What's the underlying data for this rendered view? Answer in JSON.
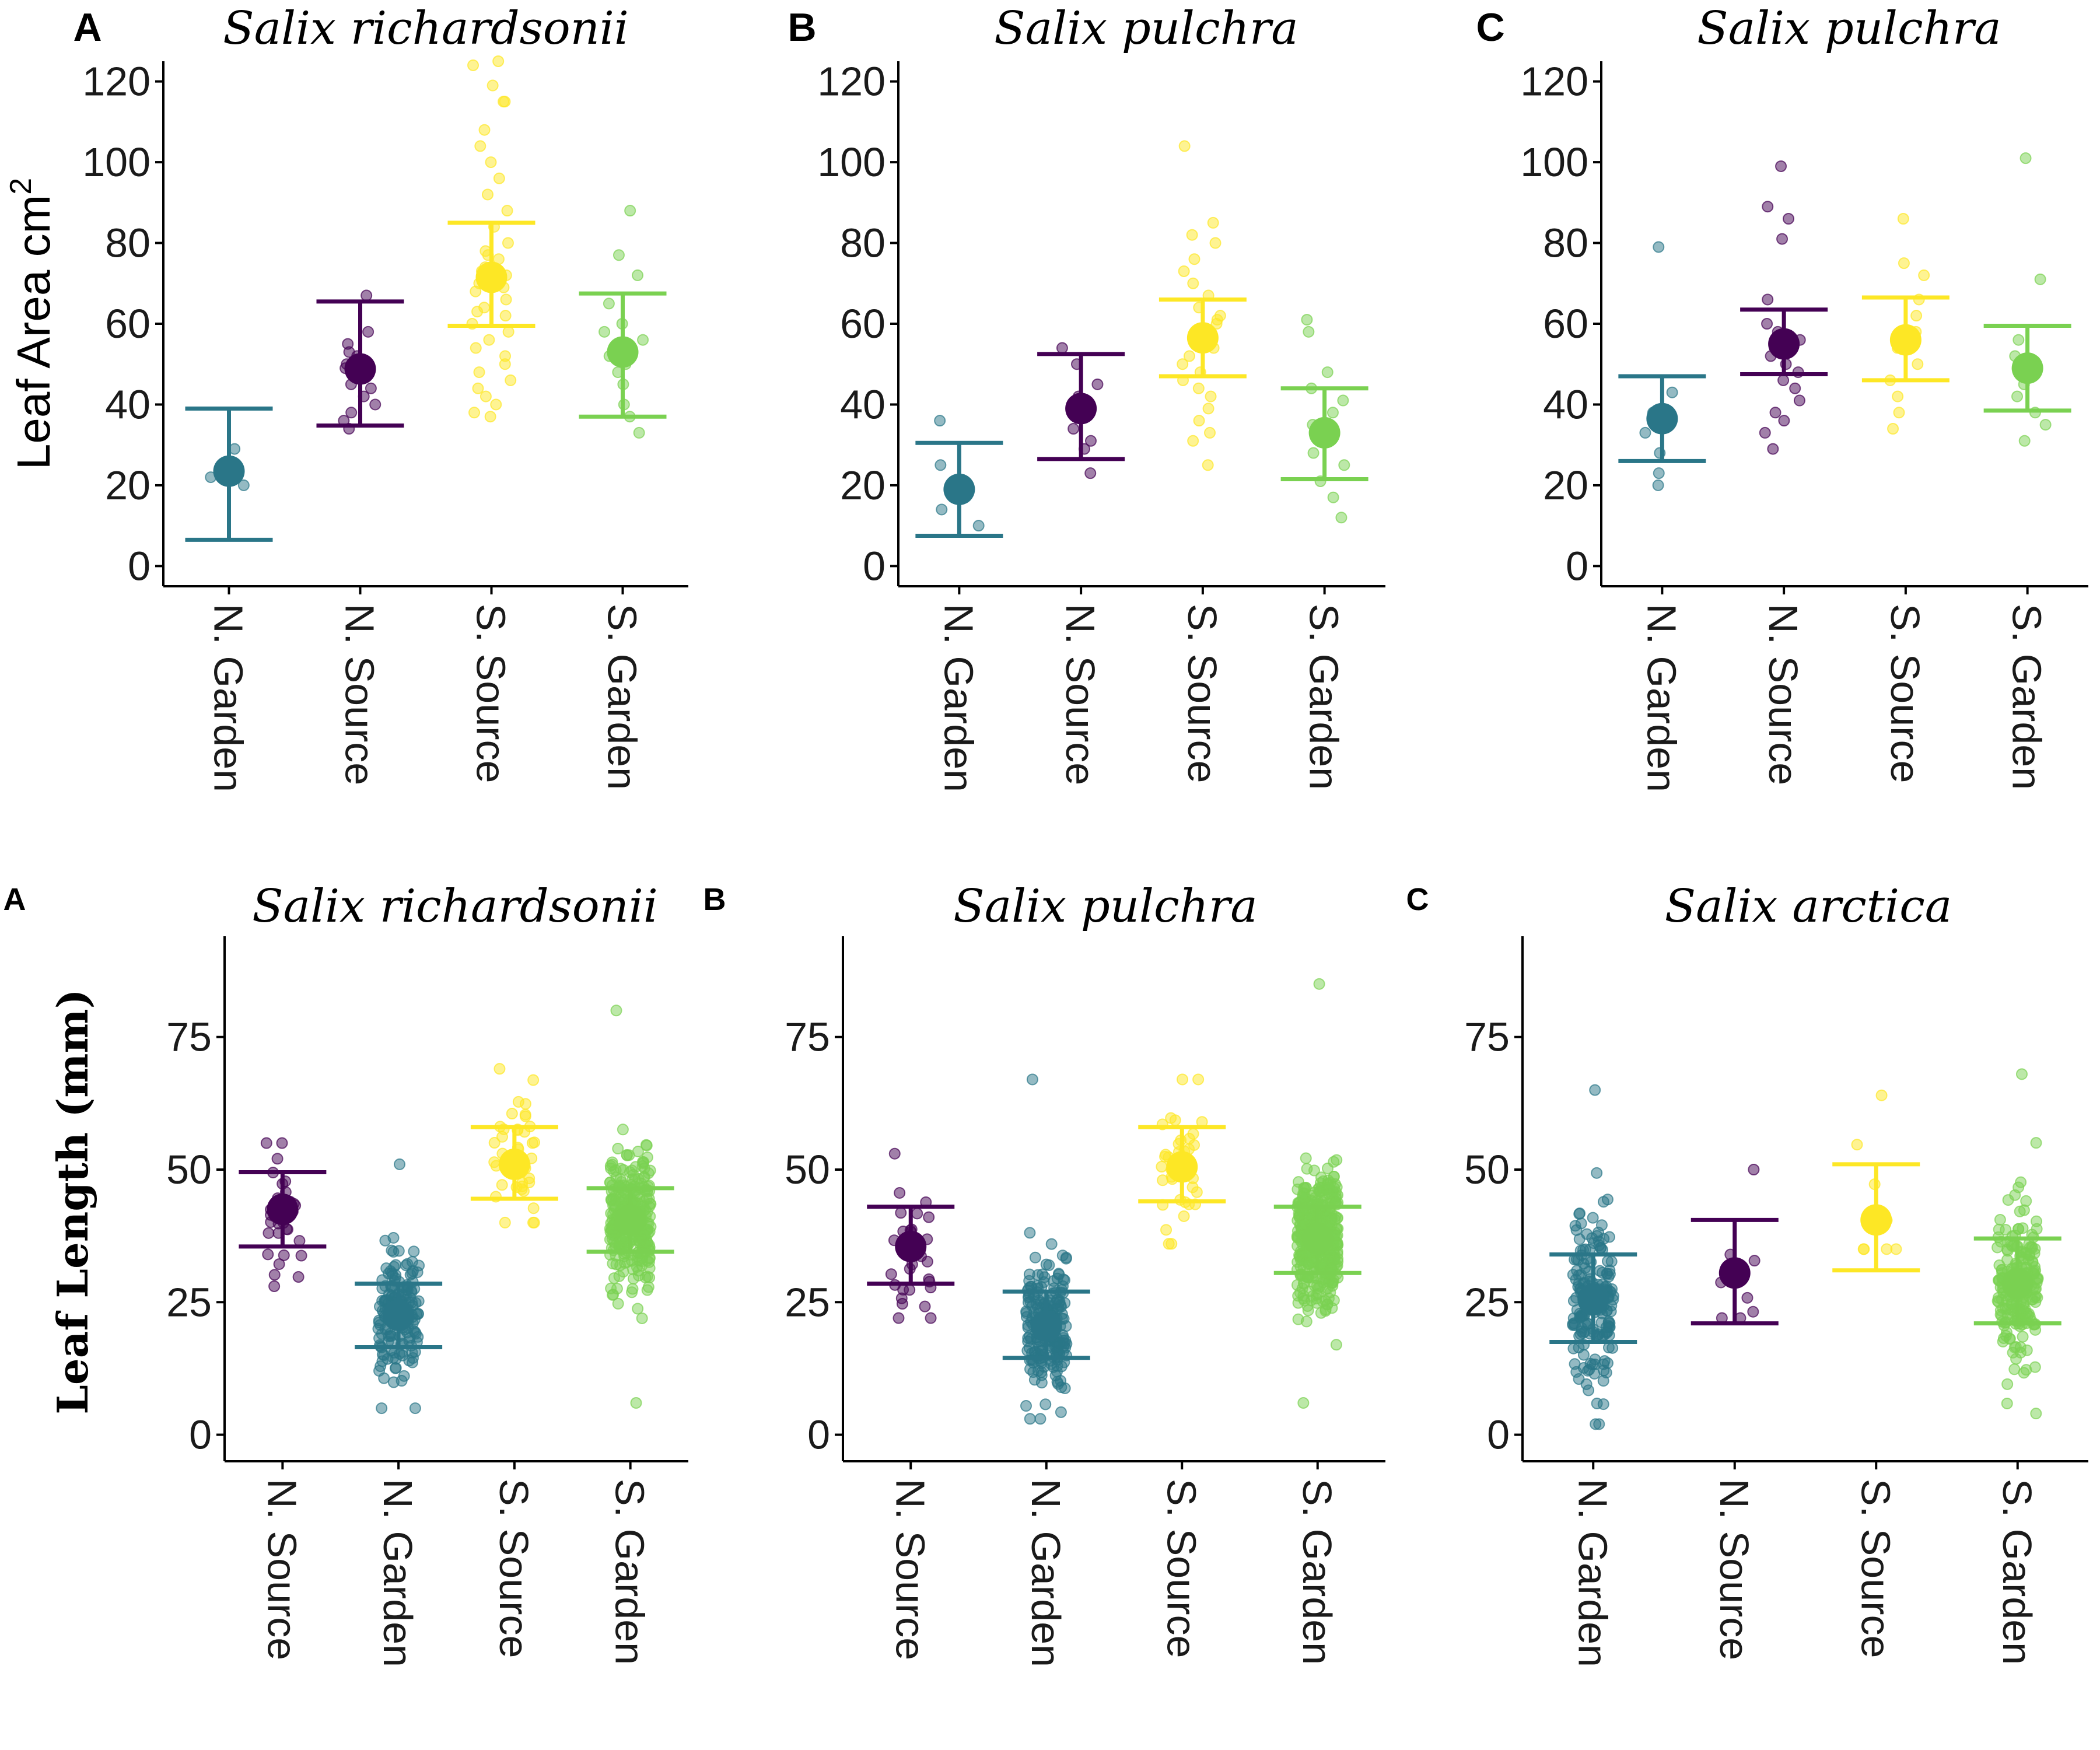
{
  "colors": {
    "N. Garden": "#2a7688",
    "N. Source": "#440154",
    "S. Source": "#fde725",
    "S. Garden": "#7ad151"
  },
  "chart_data": [
    {
      "type": "scatter",
      "letter": "A",
      "title": "Salix richardsonii",
      "ylabel": "Leaf Area cm",
      "ylabel_sup": "2",
      "ylim": [
        -5,
        125
      ],
      "yticks": [
        0,
        20,
        40,
        60,
        80,
        100,
        120
      ],
      "categories": [
        "N. Garden",
        "N. Source",
        "S. Source",
        "S. Garden"
      ],
      "series": [
        {
          "category": "N. Garden",
          "mean": 23.5,
          "lower": 6.5,
          "upper": 39.0,
          "points": [
            29,
            25,
            20,
            22,
            24
          ]
        },
        {
          "category": "N. Source",
          "mean": 48.8,
          "lower": 34.8,
          "upper": 65.5,
          "points": [
            67,
            58,
            55,
            52,
            50,
            47,
            45,
            42,
            40,
            38,
            36,
            34,
            44,
            49,
            53
          ]
        },
        {
          "category": "S. Source",
          "mean": 71.5,
          "lower": 59.5,
          "upper": 85.0,
          "points": [
            125,
            124,
            119,
            115,
            115,
            108,
            104,
            100,
            96,
            92,
            88,
            84,
            80,
            78,
            76,
            74,
            72,
            70,
            68,
            66,
            64,
            62,
            60,
            58,
            56,
            54,
            52,
            50,
            48,
            46,
            44,
            42,
            40,
            38,
            37,
            69,
            73,
            77,
            63
          ]
        },
        {
          "category": "S. Garden",
          "mean": 53.0,
          "lower": 37.0,
          "upper": 67.5,
          "points": [
            88,
            77,
            72,
            65,
            60,
            56,
            52,
            48,
            45,
            40,
            37,
            33,
            58,
            50
          ]
        }
      ]
    },
    {
      "type": "scatter",
      "letter": "B",
      "title": "Salix pulchra",
      "ylim": [
        -5,
        125
      ],
      "yticks": [
        0,
        20,
        40,
        60,
        80,
        100,
        120
      ],
      "categories": [
        "N. Garden",
        "N. Source",
        "S. Source",
        "S. Garden"
      ],
      "series": [
        {
          "category": "N. Garden",
          "mean": 19.0,
          "lower": 7.5,
          "upper": 30.5,
          "points": [
            36,
            25,
            18,
            14,
            10
          ]
        },
        {
          "category": "N. Source",
          "mean": 39.0,
          "lower": 26.5,
          "upper": 52.5,
          "points": [
            54,
            50,
            45,
            42,
            40,
            37,
            34,
            31,
            29,
            23
          ]
        },
        {
          "category": "S. Source",
          "mean": 56.5,
          "lower": 47.0,
          "upper": 66.0,
          "points": [
            104,
            85,
            82,
            80,
            76,
            73,
            70,
            67,
            64,
            61,
            58,
            56,
            54,
            52,
            50,
            48,
            46,
            44,
            42,
            39,
            36,
            33,
            31,
            25,
            60,
            62
          ]
        },
        {
          "category": "S. Garden",
          "mean": 33.0,
          "lower": 21.5,
          "upper": 44.0,
          "points": [
            61,
            58,
            48,
            44,
            41,
            38,
            35,
            31,
            28,
            25,
            21,
            17,
            12
          ]
        }
      ]
    },
    {
      "type": "scatter",
      "letter": "C",
      "title": "Salix pulchra",
      "ylim": [
        -5,
        125
      ],
      "yticks": [
        0,
        20,
        40,
        60,
        80,
        100,
        120
      ],
      "categories": [
        "N. Garden",
        "N. Source",
        "S. Source",
        "S. Garden"
      ],
      "series": [
        {
          "category": "N. Garden",
          "mean": 36.5,
          "lower": 26.0,
          "upper": 47.0,
          "points": [
            79,
            43,
            38,
            33,
            28,
            23,
            20
          ]
        },
        {
          "category": "N. Source",
          "mean": 55.0,
          "lower": 47.5,
          "upper": 63.5,
          "points": [
            99,
            89,
            86,
            81,
            66,
            60,
            58,
            56,
            54,
            52,
            50,
            48,
            46,
            44,
            41,
            38,
            36,
            33,
            29
          ]
        },
        {
          "category": "S. Source",
          "mean": 56.0,
          "lower": 46.0,
          "upper": 66.5,
          "points": [
            86,
            75,
            72,
            66,
            62,
            58,
            54,
            50,
            46,
            42,
            38,
            34
          ]
        },
        {
          "category": "S. Garden",
          "mean": 49.0,
          "lower": 38.5,
          "upper": 59.5,
          "points": [
            101,
            71,
            56,
            52,
            48,
            45,
            42,
            38,
            35,
            31
          ]
        }
      ]
    },
    {
      "type": "scatter",
      "letter": "A",
      "title": "Salix richardsonii",
      "ylabel": "Leaf Length (mm)",
      "ylim": [
        -5,
        94
      ],
      "yticks": [
        0,
        25,
        50,
        75
      ],
      "categories": [
        "N. Source",
        "N. Garden",
        "S. Source",
        "S. Garden"
      ],
      "series": [
        {
          "category": "N. Source",
          "mean": 42.5,
          "lower": 35.5,
          "upper": 49.5,
          "n": 30,
          "spread": [
            28,
            55
          ]
        },
        {
          "category": "N. Garden",
          "mean": 22.5,
          "lower": 16.5,
          "upper": 28.5,
          "n": 160,
          "spread": [
            5,
            51
          ]
        },
        {
          "category": "S. Source",
          "mean": 51.0,
          "lower": 44.5,
          "upper": 58.0,
          "n": 45,
          "spread": [
            40,
            69
          ]
        },
        {
          "category": "S. Garden",
          "mean": 40.5,
          "lower": 34.5,
          "upper": 46.5,
          "n": 320,
          "spread": [
            6,
            80
          ]
        }
      ]
    },
    {
      "type": "scatter",
      "letter": "B",
      "title": "Salix pulchra",
      "ylim": [
        -5,
        94
      ],
      "yticks": [
        0,
        25,
        50,
        75
      ],
      "categories": [
        "N. Source",
        "N. Garden",
        "S. Source",
        "S. Garden"
      ],
      "series": [
        {
          "category": "N. Source",
          "mean": 35.5,
          "lower": 28.5,
          "upper": 43.0,
          "n": 30,
          "spread": [
            22,
            53
          ]
        },
        {
          "category": "N. Garden",
          "mean": 20.5,
          "lower": 14.5,
          "upper": 27.0,
          "n": 220,
          "spread": [
            3,
            67
          ]
        },
        {
          "category": "S. Source",
          "mean": 50.5,
          "lower": 44.0,
          "upper": 58.0,
          "n": 40,
          "spread": [
            36,
            67
          ]
        },
        {
          "category": "S. Garden",
          "mean": 37.0,
          "lower": 30.5,
          "upper": 43.0,
          "n": 400,
          "spread": [
            6,
            85
          ]
        }
      ]
    },
    {
      "type": "scatter",
      "letter": "C",
      "title": "Salix arctica",
      "ylim": [
        -5,
        94
      ],
      "yticks": [
        0,
        25,
        50,
        75
      ],
      "categories": [
        "N. Garden",
        "N. Source",
        "S. Source",
        "S. Garden"
      ],
      "series": [
        {
          "category": "N. Garden",
          "mean": 25.5,
          "lower": 17.5,
          "upper": 34.0,
          "n": 180,
          "spread": [
            2,
            65
          ]
        },
        {
          "category": "N. Source",
          "mean": 30.5,
          "lower": 21.0,
          "upper": 40.5,
          "n": 8,
          "spread": [
            22,
            50
          ]
        },
        {
          "category": "S. Source",
          "mean": 40.5,
          "lower": 31.0,
          "upper": 51.0,
          "n": 8,
          "spread": [
            35,
            64
          ]
        },
        {
          "category": "S. Garden",
          "mean": 28.5,
          "lower": 21.0,
          "upper": 37.0,
          "n": 200,
          "spread": [
            4,
            68
          ]
        }
      ]
    }
  ]
}
